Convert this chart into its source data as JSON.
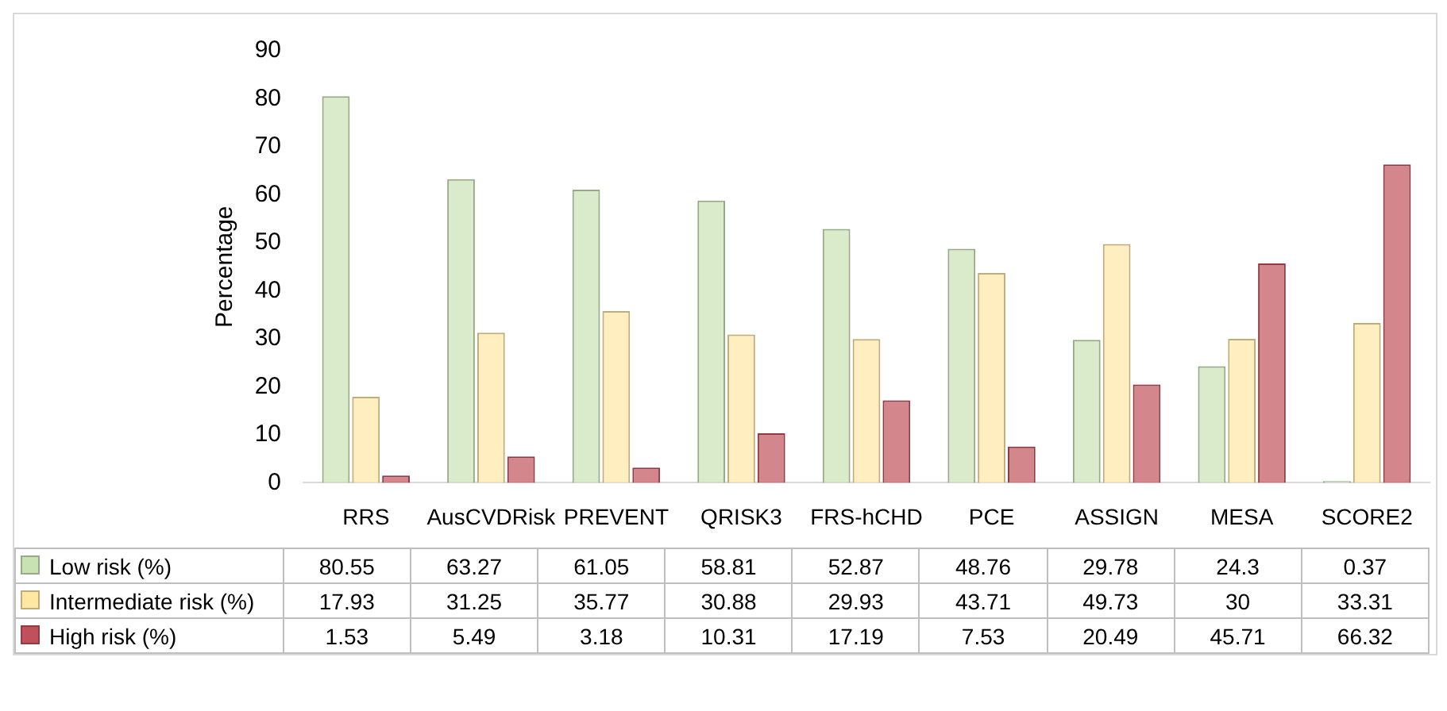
{
  "chart_data": {
    "type": "bar",
    "ylabel": "Percentage",
    "categories": [
      "RRS",
      "AusCVDRisk",
      "PREVENT",
      "QRISK3",
      "FRS-hCHD",
      "PCE",
      "ASSIGN",
      "MESA",
      "SCORE2"
    ],
    "series": [
      {
        "name": "Low risk (%)",
        "color": "#c9e2b3",
        "values": [
          80.55,
          63.27,
          61.05,
          58.81,
          52.87,
          48.76,
          29.78,
          24.3,
          0.37
        ]
      },
      {
        "name": "Intermediate risk (%)",
        "color": "#fde7a3",
        "values": [
          17.93,
          31.25,
          35.77,
          30.88,
          29.93,
          43.71,
          49.73,
          30,
          33.31
        ]
      },
      {
        "name": "High risk (%)",
        "color": "#c0505a",
        "values": [
          1.53,
          5.49,
          3.18,
          10.31,
          17.19,
          7.53,
          20.49,
          45.71,
          66.32
        ]
      }
    ],
    "ylim": [
      0,
      90
    ],
    "yticks": [
      0,
      10,
      20,
      30,
      40,
      50,
      60,
      70,
      80,
      90
    ],
    "grid": false,
    "legend": "bottom",
    "data_labels": true
  }
}
